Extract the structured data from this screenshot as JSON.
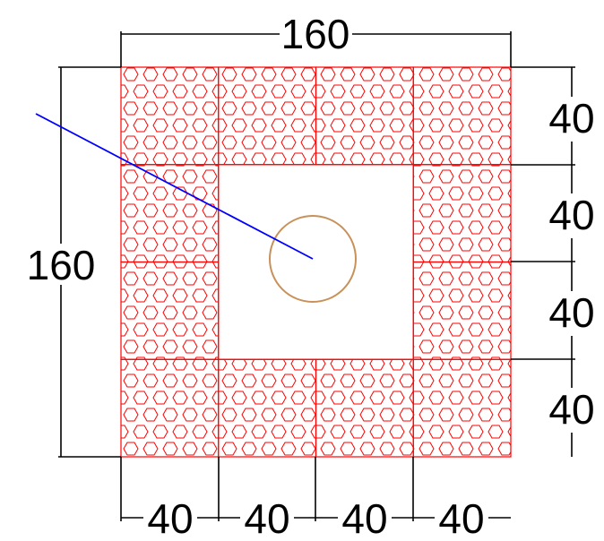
{
  "drawing": {
    "title": "",
    "colors": {
      "background": "#ffffff",
      "dimension": "#000000",
      "hatch": "#ff0000",
      "circle": "#c8915a",
      "leader": "#0000ff"
    },
    "hatch_pattern": "hexagon",
    "grid": {
      "rows": 4,
      "cols": 4,
      "open_center": true
    }
  },
  "dimensions": {
    "top_overall": "160",
    "left_overall": "160",
    "right_segments": [
      "40",
      "40",
      "40",
      "40"
    ],
    "bottom_segments": [
      "40",
      "40",
      "40",
      "40"
    ]
  }
}
